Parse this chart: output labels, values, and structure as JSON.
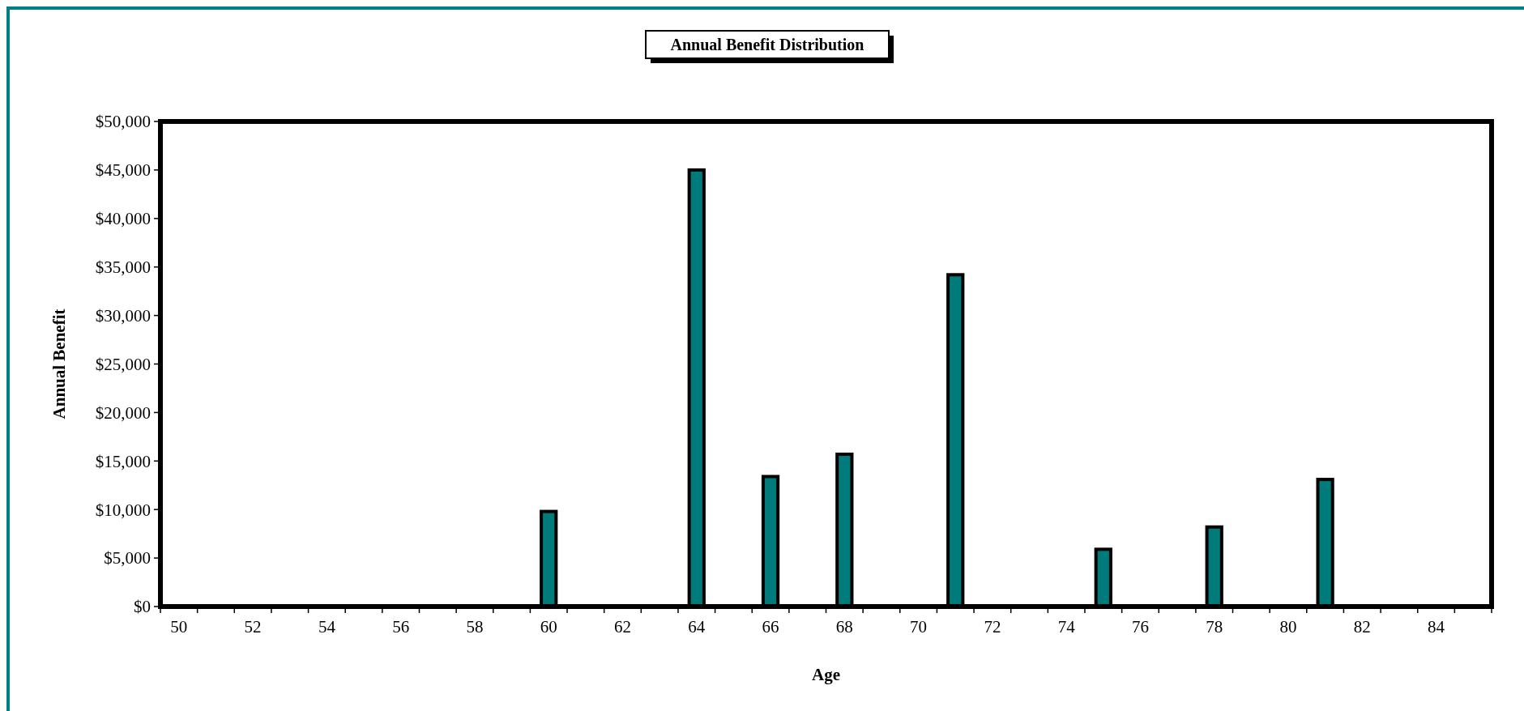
{
  "chart_data": {
    "type": "bar",
    "title": "Annual Benefit Distribution",
    "xlabel": "Age",
    "ylabel": "Annual Benefit",
    "categories": [
      "50",
      null,
      "52",
      null,
      "54",
      null,
      "56",
      null,
      "58",
      null,
      "60",
      null,
      "62",
      null,
      "64",
      null,
      "66",
      null,
      "68",
      null,
      "70",
      null,
      "72",
      null,
      "74",
      null,
      "76",
      null,
      "78",
      null,
      "80",
      null,
      "82",
      null,
      "84",
      null
    ],
    "values": [
      0,
      0,
      0,
      0,
      0,
      0,
      0,
      0,
      0,
      0,
      9800,
      0,
      0,
      0,
      45000,
      0,
      13400,
      0,
      15700,
      0,
      0,
      34200,
      0,
      0,
      0,
      5900,
      0,
      0,
      8200,
      0,
      0,
      13100,
      0,
      0,
      0,
      0
    ],
    "color": "#007b7b",
    "ylim": [
      0,
      50000
    ],
    "yticks": [
      {
        "value": 0,
        "label": "$0"
      },
      {
        "value": 5000,
        "label": "$5,000"
      },
      {
        "value": 10000,
        "label": "$10,000"
      },
      {
        "value": 15000,
        "label": "$15,000"
      },
      {
        "value": 20000,
        "label": "$20,000"
      },
      {
        "value": 25000,
        "label": "$25,000"
      },
      {
        "value": 30000,
        "label": "$30,000"
      },
      {
        "value": 35000,
        "label": "$35,000"
      },
      {
        "value": 40000,
        "label": "$40,000"
      },
      {
        "value": 45000,
        "label": "$45,000"
      },
      {
        "value": 50000,
        "label": "$50,000"
      }
    ],
    "grid": false
  }
}
